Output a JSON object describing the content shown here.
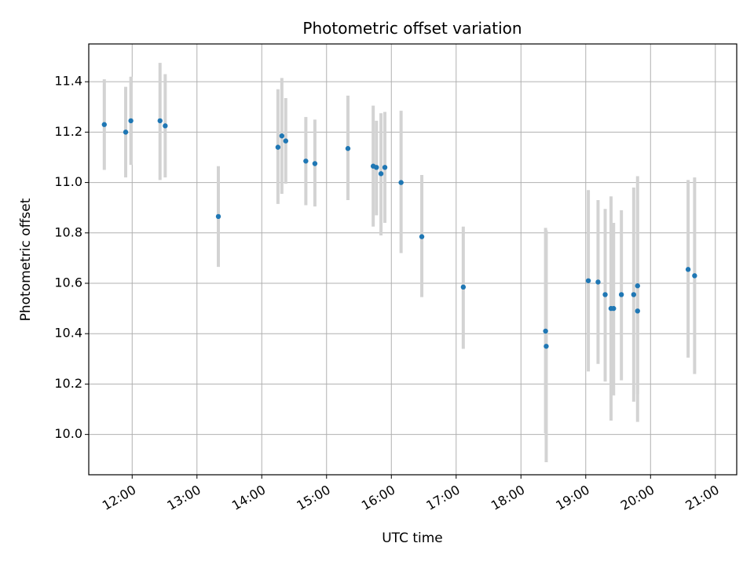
{
  "chart_data": {
    "type": "scatter",
    "title": "Photometric offset variation",
    "xlabel": "UTC time",
    "ylabel": "Photometric offset",
    "x_unit": "hours UTC",
    "xlim": [
      11.33,
      21.33
    ],
    "ylim": [
      9.84,
      11.55
    ],
    "grid": true,
    "x_ticks": [
      12,
      13,
      14,
      15,
      16,
      17,
      18,
      19,
      20,
      21
    ],
    "x_tick_labels": [
      "12:00",
      "13:00",
      "14:00",
      "15:00",
      "16:00",
      "17:00",
      "18:00",
      "19:00",
      "20:00",
      "21:00"
    ],
    "y_ticks": [
      10.0,
      10.2,
      10.4,
      10.6,
      10.8,
      11.0,
      11.2,
      11.4
    ],
    "y_tick_labels": [
      "10.0",
      "10.2",
      "10.4",
      "10.6",
      "10.8",
      "11.0",
      "11.2",
      "11.4"
    ],
    "point_color": "#1f77b4",
    "errorbar_color": "#d3d3d3",
    "series": [
      {
        "name": "offset",
        "points": [
          {
            "x": 11.57,
            "y": 11.23,
            "lo": 11.05,
            "hi": 11.41
          },
          {
            "x": 11.9,
            "y": 11.2,
            "lo": 11.02,
            "hi": 11.38
          },
          {
            "x": 11.98,
            "y": 11.245,
            "lo": 11.07,
            "hi": 11.42
          },
          {
            "x": 12.43,
            "y": 11.245,
            "lo": 11.01,
            "hi": 11.475
          },
          {
            "x": 12.51,
            "y": 11.225,
            "lo": 11.02,
            "hi": 11.43
          },
          {
            "x": 13.33,
            "y": 10.865,
            "lo": 10.665,
            "hi": 11.065
          },
          {
            "x": 14.25,
            "y": 11.14,
            "lo": 10.915,
            "hi": 11.37
          },
          {
            "x": 14.31,
            "y": 11.185,
            "lo": 10.955,
            "hi": 11.415
          },
          {
            "x": 14.37,
            "y": 11.165,
            "lo": 10.995,
            "hi": 11.335
          },
          {
            "x": 14.68,
            "y": 11.085,
            "lo": 10.91,
            "hi": 11.26
          },
          {
            "x": 14.82,
            "y": 11.075,
            "lo": 10.905,
            "hi": 11.25
          },
          {
            "x": 15.33,
            "y": 11.135,
            "lo": 10.93,
            "hi": 11.345
          },
          {
            "x": 15.72,
            "y": 11.065,
            "lo": 10.825,
            "hi": 11.305
          },
          {
            "x": 15.77,
            "y": 11.06,
            "lo": 10.87,
            "hi": 11.245
          },
          {
            "x": 15.84,
            "y": 11.035,
            "lo": 10.79,
            "hi": 11.275
          },
          {
            "x": 15.9,
            "y": 11.06,
            "lo": 10.84,
            "hi": 11.28
          },
          {
            "x": 16.15,
            "y": 11.0,
            "lo": 10.72,
            "hi": 11.285
          },
          {
            "x": 16.47,
            "y": 10.785,
            "lo": 10.545,
            "hi": 11.03
          },
          {
            "x": 17.11,
            "y": 10.585,
            "lo": 10.34,
            "hi": 10.825
          },
          {
            "x": 18.38,
            "y": 10.41,
            "lo": 10.005,
            "hi": 10.82
          },
          {
            "x": 18.39,
            "y": 10.35,
            "lo": 9.89,
            "hi": 10.81
          },
          {
            "x": 19.04,
            "y": 10.61,
            "lo": 10.25,
            "hi": 10.97
          },
          {
            "x": 19.19,
            "y": 10.605,
            "lo": 10.28,
            "hi": 10.93
          },
          {
            "x": 19.3,
            "y": 10.555,
            "lo": 10.21,
            "hi": 10.895
          },
          {
            "x": 19.39,
            "y": 10.5,
            "lo": 10.055,
            "hi": 10.945
          },
          {
            "x": 19.43,
            "y": 10.5,
            "lo": 10.155,
            "hi": 10.84
          },
          {
            "x": 19.55,
            "y": 10.555,
            "lo": 10.215,
            "hi": 10.89
          },
          {
            "x": 19.74,
            "y": 10.555,
            "lo": 10.13,
            "hi": 10.98
          },
          {
            "x": 19.8,
            "y": 10.49,
            "lo": 10.05,
            "hi": 10.93
          },
          {
            "x": 19.8,
            "y": 10.59,
            "lo": 10.16,
            "hi": 11.025
          },
          {
            "x": 20.58,
            "y": 10.655,
            "lo": 10.305,
            "hi": 11.01
          },
          {
            "x": 20.68,
            "y": 10.63,
            "lo": 10.24,
            "hi": 11.02
          }
        ]
      }
    ]
  }
}
